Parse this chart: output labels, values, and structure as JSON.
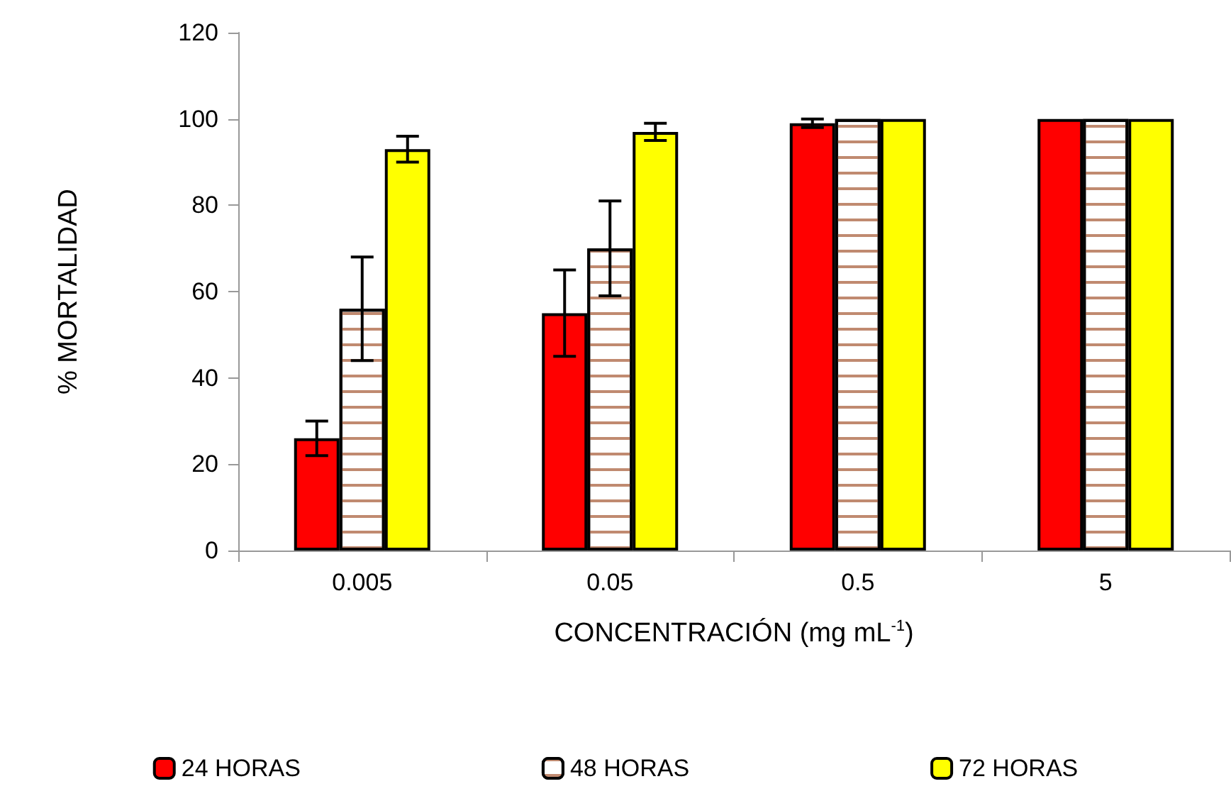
{
  "chart_data": {
    "type": "bar",
    "xlabel": "CONCENTRACIÓN (mg mL$^{-1}$)",
    "ylabel": "% MORTALIDAD",
    "categories": [
      "0.005",
      "0.05",
      "0.5",
      "5"
    ],
    "series": [
      {
        "name": "24 HORAS",
        "color": "#ff0000",
        "values": [
          26,
          55,
          99,
          100
        ],
        "errors": [
          4,
          10,
          1,
          null
        ]
      },
      {
        "name": "48 HORAS",
        "color": "#ffffff",
        "values": [
          56,
          70,
          100,
          100
        ],
        "errors": [
          12,
          11,
          null,
          null
        ]
      },
      {
        "name": "72 HORAS",
        "color": "#ffff00",
        "values": [
          93,
          97,
          100,
          100
        ],
        "errors": [
          3,
          2,
          null,
          null
        ]
      }
    ],
    "ylim": [
      0,
      120
    ],
    "yticks": [
      0,
      20,
      40,
      60,
      80,
      100,
      120
    ],
    "grid": false,
    "legend": "bottom"
  }
}
